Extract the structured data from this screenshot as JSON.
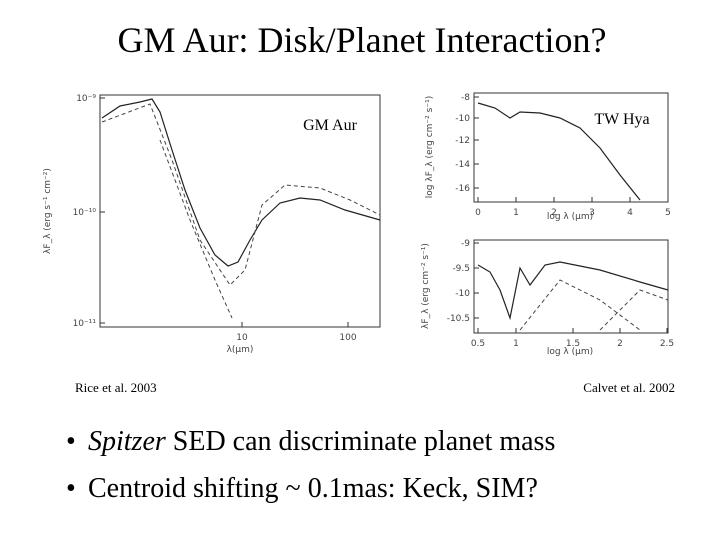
{
  "title": "GM Aur: Disk/Planet Interaction?",
  "figures": [
    {
      "label": "GM Aur",
      "caption": "Rice et al. 2003",
      "x_label": "λ(μm)",
      "y_label": "λF_λ (erg s⁻¹ cm⁻²)",
      "x_ticks": [
        "10",
        "100"
      ],
      "y_ticks": [
        "10⁻⁹",
        "10⁻¹⁰",
        "10⁻¹¹"
      ]
    },
    {
      "label": "TW Hya",
      "caption": "Calvet et al. 2002",
      "panels": [
        {
          "x_label": "log λ (μm)",
          "y_label": "log λF_λ (erg cm⁻² s⁻¹)",
          "x_ticks": [
            "0",
            "1",
            "2",
            "3",
            "4",
            "5"
          ],
          "y_ticks": [
            "-8",
            "-10",
            "-12",
            "-14",
            "-16"
          ]
        },
        {
          "x_label": "log λ (μm)",
          "y_label": "λF_λ (erg cm⁻² s⁻¹)",
          "x_ticks": [
            "0.5",
            "1",
            "1.5",
            "2",
            "2.5"
          ],
          "y_ticks": [
            "-9",
            "-9.5",
            "-10",
            "-10.5"
          ]
        }
      ]
    }
  ],
  "bullets": [
    {
      "italic": "Spitzer",
      "text": "SED can discriminate planet mass"
    },
    {
      "text": "Centroid shifting ~ 0.1mas: Keck, SIM?"
    }
  ]
}
